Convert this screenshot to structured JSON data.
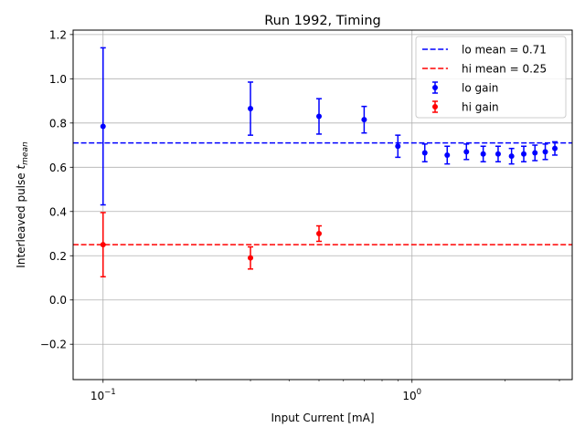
{
  "chart_data": {
    "type": "scatter",
    "title": "Run 1992, Timing",
    "xlabel": "Input Current [mA]",
    "ylabel_main": "Interleaved pulse ",
    "ylabel_sym": "t",
    "ylabel_sub": "mean",
    "xscale": "log",
    "xlim": [
      0.08,
      3.3
    ],
    "ylim": [
      -0.36,
      1.22
    ],
    "grid": true,
    "legend_position": "top-right",
    "y_ticks": [
      {
        "value": -0.2,
        "label": "−0.2"
      },
      {
        "value": 0.0,
        "label": "0.0"
      },
      {
        "value": 0.2,
        "label": "0.2"
      },
      {
        "value": 0.4,
        "label": "0.4"
      },
      {
        "value": 0.6,
        "label": "0.6"
      },
      {
        "value": 0.8,
        "label": "0.8"
      },
      {
        "value": 1.0,
        "label": "1.0"
      },
      {
        "value": 1.2,
        "label": "1.2"
      }
    ],
    "x_ticks_major": [
      {
        "value": 0.1,
        "base": "10",
        "exp": "−1"
      },
      {
        "value": 1.0,
        "base": "10",
        "exp": "0"
      }
    ],
    "x_ticks_minor": [
      0.2,
      0.3,
      0.4,
      0.5,
      0.6,
      0.7,
      0.8,
      0.9,
      2,
      3
    ],
    "lines": [
      {
        "name": "lo mean = 0.71",
        "y": 0.71,
        "color": "#0000ff"
      },
      {
        "name": "hi mean = 0.25",
        "y": 0.25,
        "color": "#ff0000"
      }
    ],
    "series": [
      {
        "name": "lo gain",
        "color": "#0000ff",
        "points": [
          {
            "x": 0.1,
            "y": 0.785,
            "err": 0.355
          },
          {
            "x": 0.3,
            "y": 0.865,
            "err": 0.12
          },
          {
            "x": 0.5,
            "y": 0.83,
            "err": 0.08
          },
          {
            "x": 0.7,
            "y": 0.815,
            "err": 0.06
          },
          {
            "x": 0.9,
            "y": 0.695,
            "err": 0.05
          },
          {
            "x": 1.1,
            "y": 0.665,
            "err": 0.04
          },
          {
            "x": 1.3,
            "y": 0.655,
            "err": 0.04
          },
          {
            "x": 1.5,
            "y": 0.67,
            "err": 0.035
          },
          {
            "x": 1.7,
            "y": 0.66,
            "err": 0.035
          },
          {
            "x": 1.9,
            "y": 0.66,
            "err": 0.035
          },
          {
            "x": 2.1,
            "y": 0.65,
            "err": 0.035
          },
          {
            "x": 2.3,
            "y": 0.66,
            "err": 0.035
          },
          {
            "x": 2.5,
            "y": 0.665,
            "err": 0.035
          },
          {
            "x": 2.7,
            "y": 0.67,
            "err": 0.035
          },
          {
            "x": 2.9,
            "y": 0.685,
            "err": 0.03
          }
        ]
      },
      {
        "name": "hi gain",
        "color": "#ff0000",
        "points": [
          {
            "x": 0.1,
            "y": 0.25,
            "err": 0.145
          },
          {
            "x": 0.3,
            "y": 0.19,
            "err": 0.05
          },
          {
            "x": 0.5,
            "y": 0.3,
            "err": 0.035
          }
        ]
      }
    ]
  }
}
